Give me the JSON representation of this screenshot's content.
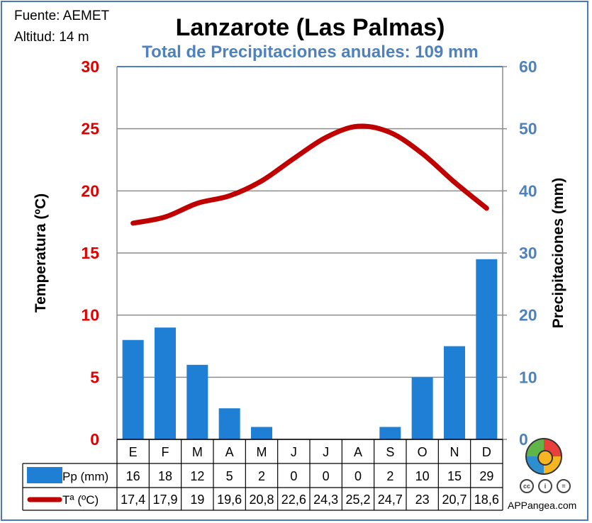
{
  "source": "Fuente: AEMET",
  "altitude": "Altitud: 14 m",
  "brand": "APPangea.com",
  "icons": [
    "appangea-logo-icon",
    "cc-icon",
    "by-icon",
    "nd-icon"
  ],
  "colors": {
    "precip": "#1f7fd4",
    "temp": "#c00000",
    "left_axis": "#e00000",
    "right_axis": "#4f81bd",
    "frame": "#4a7ab8"
  },
  "chart_data": {
    "type": "climograph",
    "title": "Lanzarote (Las Palmas)",
    "subtitle": "Total de Precipitaciones anuales: 109 mm",
    "ylabel_left": "Temperatura (ºC)",
    "ylabel_right": "Precipitaciones (mm)",
    "ylim_left": [
      0,
      30
    ],
    "ylim_right": [
      0,
      60
    ],
    "yticks_left": [
      "0",
      "5",
      "10",
      "15",
      "20",
      "25",
      "30"
    ],
    "yticks_right": [
      "0",
      "10",
      "20",
      "30",
      "40",
      "50",
      "60"
    ],
    "grid": true,
    "categories": [
      "E",
      "F",
      "M",
      "A",
      "M",
      "J",
      "J",
      "A",
      "S",
      "O",
      "N",
      "D"
    ],
    "series": [
      {
        "name": "Pp (mm)",
        "type": "bar",
        "axis": "right",
        "values": [
          16,
          18,
          12,
          5,
          2,
          0,
          0,
          0,
          2,
          10,
          15,
          29
        ]
      },
      {
        "name": "Tª (ºC)",
        "type": "line",
        "axis": "left",
        "values": [
          17.4,
          17.9,
          19,
          19.6,
          20.8,
          22.6,
          24.3,
          25.2,
          24.7,
          23,
          20.7,
          18.6
        ]
      }
    ],
    "table_values": {
      "precip": [
        "16",
        "18",
        "12",
        "5",
        "2",
        "0",
        "0",
        "0",
        "2",
        "10",
        "15",
        "29"
      ],
      "temp": [
        "17,4",
        "17,9",
        "19",
        "19,6",
        "20,8",
        "22,6",
        "24,3",
        "25,2",
        "24,7",
        "23",
        "20,7",
        "18,6"
      ]
    }
  }
}
